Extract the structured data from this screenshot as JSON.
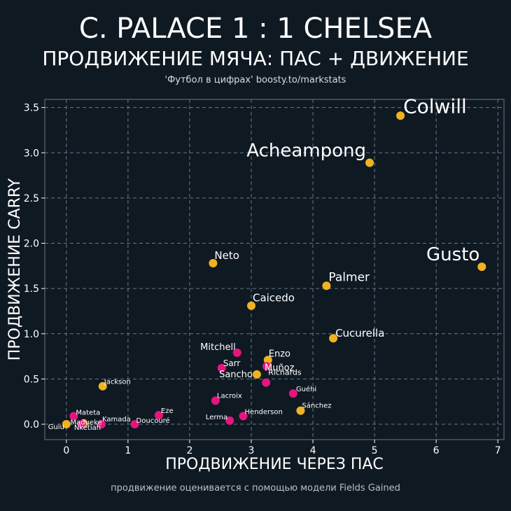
{
  "header": {
    "title": "C. PALACE 1 : 1 CHELSEA",
    "subtitle": "ПРОДВИЖЕНИЕ МЯЧА: ПАС + ДВИЖЕНИЕ",
    "credit": "'Футбол в цифрах' boosty.to/markstats"
  },
  "footnote": "продвижение оценивается с помощью модели Fields Gained",
  "colors": {
    "background": "#0f1922",
    "chelsea": "#f0b31f",
    "palace": "#e5157f",
    "grid": "#6b7884"
  },
  "chart_data": {
    "type": "scatter",
    "xlabel": "ПРОДВИЖЕНИЕ ЧЕРЕЗ ПАС",
    "ylabel": "ПРОДВИЖЕНИЕ CARRY",
    "xlim": [
      -0.35,
      7.1
    ],
    "ylim": [
      -0.17,
      3.59
    ],
    "xticks": [
      "0",
      "1",
      "2",
      "3",
      "4",
      "5",
      "6",
      "7"
    ],
    "yticks": [
      "0.0",
      "0.5",
      "1.0",
      "1.5",
      "2.0",
      "2.5",
      "3.0",
      "3.5"
    ],
    "grid": true,
    "series": [
      {
        "team": "Chelsea",
        "points": [
          {
            "name": "Colwill",
            "x": 5.42,
            "y": 3.41
          },
          {
            "name": "Acheampong",
            "x": 4.92,
            "y": 2.89
          },
          {
            "name": "Gusto",
            "x": 6.74,
            "y": 1.74
          },
          {
            "name": "Neto",
            "x": 2.38,
            "y": 1.78
          },
          {
            "name": "Palmer",
            "x": 4.22,
            "y": 1.53
          },
          {
            "name": "Caicedo",
            "x": 3.0,
            "y": 1.31
          },
          {
            "name": "Cucurella",
            "x": 4.33,
            "y": 0.95
          },
          {
            "name": "Enzo",
            "x": 3.27,
            "y": 0.71
          },
          {
            "name": "Sancho",
            "x": 3.09,
            "y": 0.55
          },
          {
            "name": "Jackson",
            "x": 0.59,
            "y": 0.42
          },
          {
            "name": "Sánchez",
            "x": 3.8,
            "y": 0.15
          },
          {
            "name": "Madueke",
            "x": 0.28,
            "y": 0.01
          },
          {
            "name": "Guiu",
            "x": 0.0,
            "y": 0.0
          }
        ]
      },
      {
        "team": "Crystal Palace",
        "points": [
          {
            "name": "Mitchell",
            "x": 2.77,
            "y": 0.79
          },
          {
            "name": "Sarr",
            "x": 2.52,
            "y": 0.62
          },
          {
            "name": "Muñoz",
            "x": 3.25,
            "y": 0.64
          },
          {
            "name": "Richards",
            "x": 3.24,
            "y": 0.46
          },
          {
            "name": "Guéhi",
            "x": 3.68,
            "y": 0.34
          },
          {
            "name": "Lacroix",
            "x": 2.42,
            "y": 0.26
          },
          {
            "name": "Eze",
            "x": 1.5,
            "y": 0.1
          },
          {
            "name": "Mateta",
            "x": 0.12,
            "y": 0.09
          },
          {
            "name": "Henderson",
            "x": 2.87,
            "y": 0.09
          },
          {
            "name": "Lerma",
            "x": 2.65,
            "y": 0.04
          },
          {
            "name": "Kamada",
            "x": 0.57,
            "y": 0.0
          },
          {
            "name": "Doucouré",
            "x": 1.11,
            "y": 0.0
          },
          {
            "name": "Nketiah",
            "x": 0.25,
            "y": 0.0
          }
        ]
      }
    ]
  }
}
